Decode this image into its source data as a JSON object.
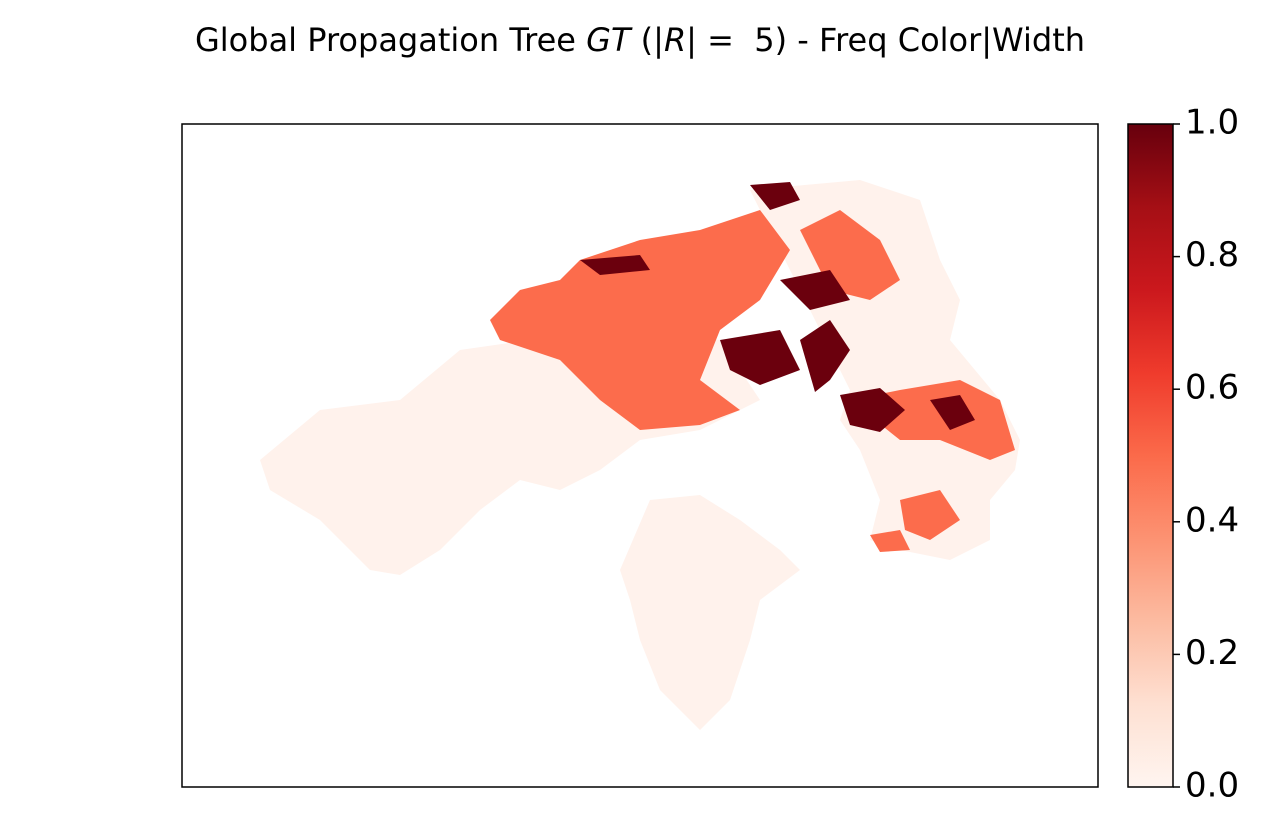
{
  "title_parts": [
    "Global Propagation Tree ",
    "GT",
    " (|",
    "R",
    "| =  5) - Freq Color|Width"
  ],
  "colorbar": {
    "lim": [
      0,
      1
    ],
    "ticks": [
      {
        "value": 0,
        "label": "0.0"
      },
      0.2,
      0.4,
      0.6,
      0.8,
      {
        "value": 1,
        "label": "1.0"
      }
    ],
    "colors": [
      "#fff5f0",
      "#fee0d2",
      "#fcbba1",
      "#fc9272",
      "#fb6a4a",
      "#ef3b2c",
      "#cb181d",
      "#a50f15",
      "#67000d"
    ]
  }
}
